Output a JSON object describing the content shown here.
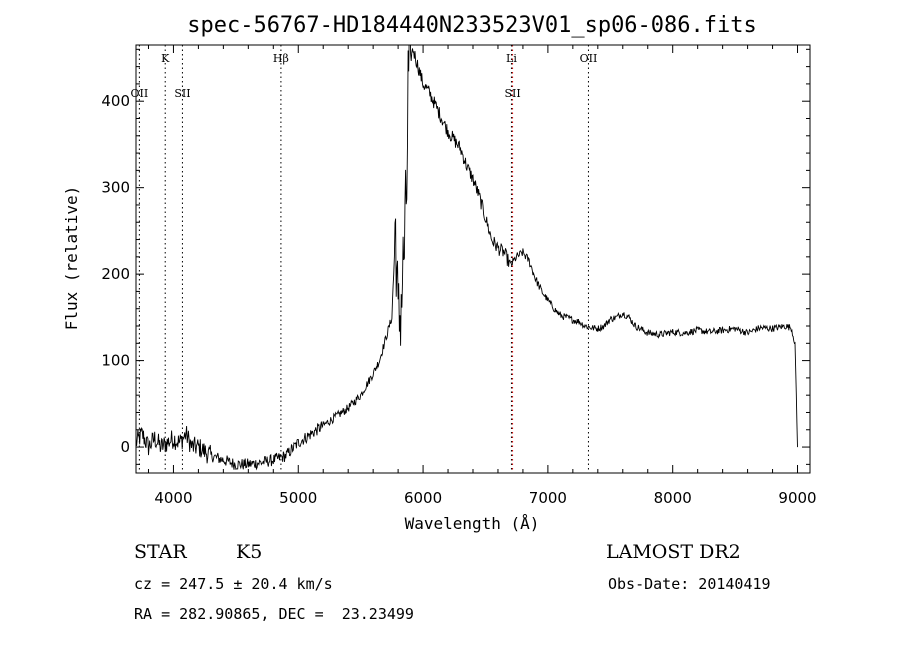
{
  "chart_data": {
    "type": "line",
    "title": "spec-56767-HD184440N233523V01_sp06-086.fits",
    "xlabel": "Wavelength (Å)",
    "ylabel": "Flux (relative)",
    "xlim": [
      3700,
      9100
    ],
    "ylim": [
      -30,
      465
    ],
    "xticks": [
      4000,
      5000,
      6000,
      7000,
      8000,
      9000
    ],
    "yticks": [
      0,
      100,
      200,
      300,
      400
    ],
    "grid": false,
    "series": [
      {
        "x": [
          3700,
          3750,
          3800,
          3850,
          3900,
          3950,
          4000,
          4050,
          4100,
          4150,
          4200,
          4300,
          4400,
          4500,
          4600,
          4700,
          4800,
          4900,
          5000,
          5100,
          5200,
          5300,
          5400,
          5500,
          5600,
          5650,
          5700,
          5750,
          5780,
          5800,
          5820,
          5850,
          5870,
          5880,
          5900,
          5920,
          5950,
          6000,
          6050,
          6100,
          6150,
          6200,
          6300,
          6350,
          6400,
          6450,
          6500,
          6550,
          6600,
          6650,
          6700,
          6750,
          6800,
          6850,
          6900,
          6950,
          7000,
          7050,
          7100,
          7150,
          7200,
          7250,
          7300,
          7350,
          7400,
          7450,
          7500,
          7550,
          7600,
          7650,
          7700,
          7800,
          7900,
          8000,
          8100,
          8200,
          8300,
          8400,
          8500,
          8600,
          8700,
          8800,
          8900,
          8950,
          8980,
          9000
        ],
        "y": [
          5,
          15,
          0,
          10,
          0,
          5,
          10,
          5,
          15,
          0,
          0,
          -10,
          -15,
          -20,
          -20,
          -18,
          -15,
          -10,
          5,
          15,
          25,
          35,
          45,
          60,
          85,
          100,
          125,
          150,
          260,
          140,
          160,
          230,
          300,
          420,
          450,
          460,
          445,
          420,
          410,
          395,
          380,
          365,
          345,
          325,
          310,
          290,
          265,
          240,
          230,
          225,
          210,
          220,
          225,
          215,
          195,
          180,
          170,
          160,
          152,
          150,
          147,
          145,
          140,
          138,
          137,
          140,
          148,
          150,
          155,
          150,
          140,
          132,
          130,
          133,
          132,
          135,
          133,
          135,
          137,
          132,
          138,
          137,
          140,
          138,
          120,
          0
        ]
      }
    ],
    "lines": [
      {
        "label": "OII",
        "x": 3727,
        "row": 1,
        "color": "#000000"
      },
      {
        "label": "K",
        "x": 3934,
        "row": 0,
        "color": "#000000"
      },
      {
        "label": "SII",
        "x": 4072,
        "row": 1,
        "color": "#000000"
      },
      {
        "label": "Hβ",
        "x": 4861,
        "row": 0,
        "color": "#000000"
      },
      {
        "label": "Li",
        "x": 6708,
        "row": 0,
        "color": "#000000"
      },
      {
        "label": "SII",
        "x": 6717,
        "row": 1,
        "color": "#cc0000"
      },
      {
        "label": "OII",
        "x": 7325,
        "row": 0,
        "color": "#000000"
      }
    ]
  },
  "info": {
    "object_class": "STAR",
    "subclass": "K5",
    "survey": "LAMOST DR2",
    "cz": "cz = 247.5 ± 20.4 km/s",
    "obs_date": "Obs-Date: 20140419",
    "radec": "RA = 282.90865, DEC =  23.23499"
  }
}
